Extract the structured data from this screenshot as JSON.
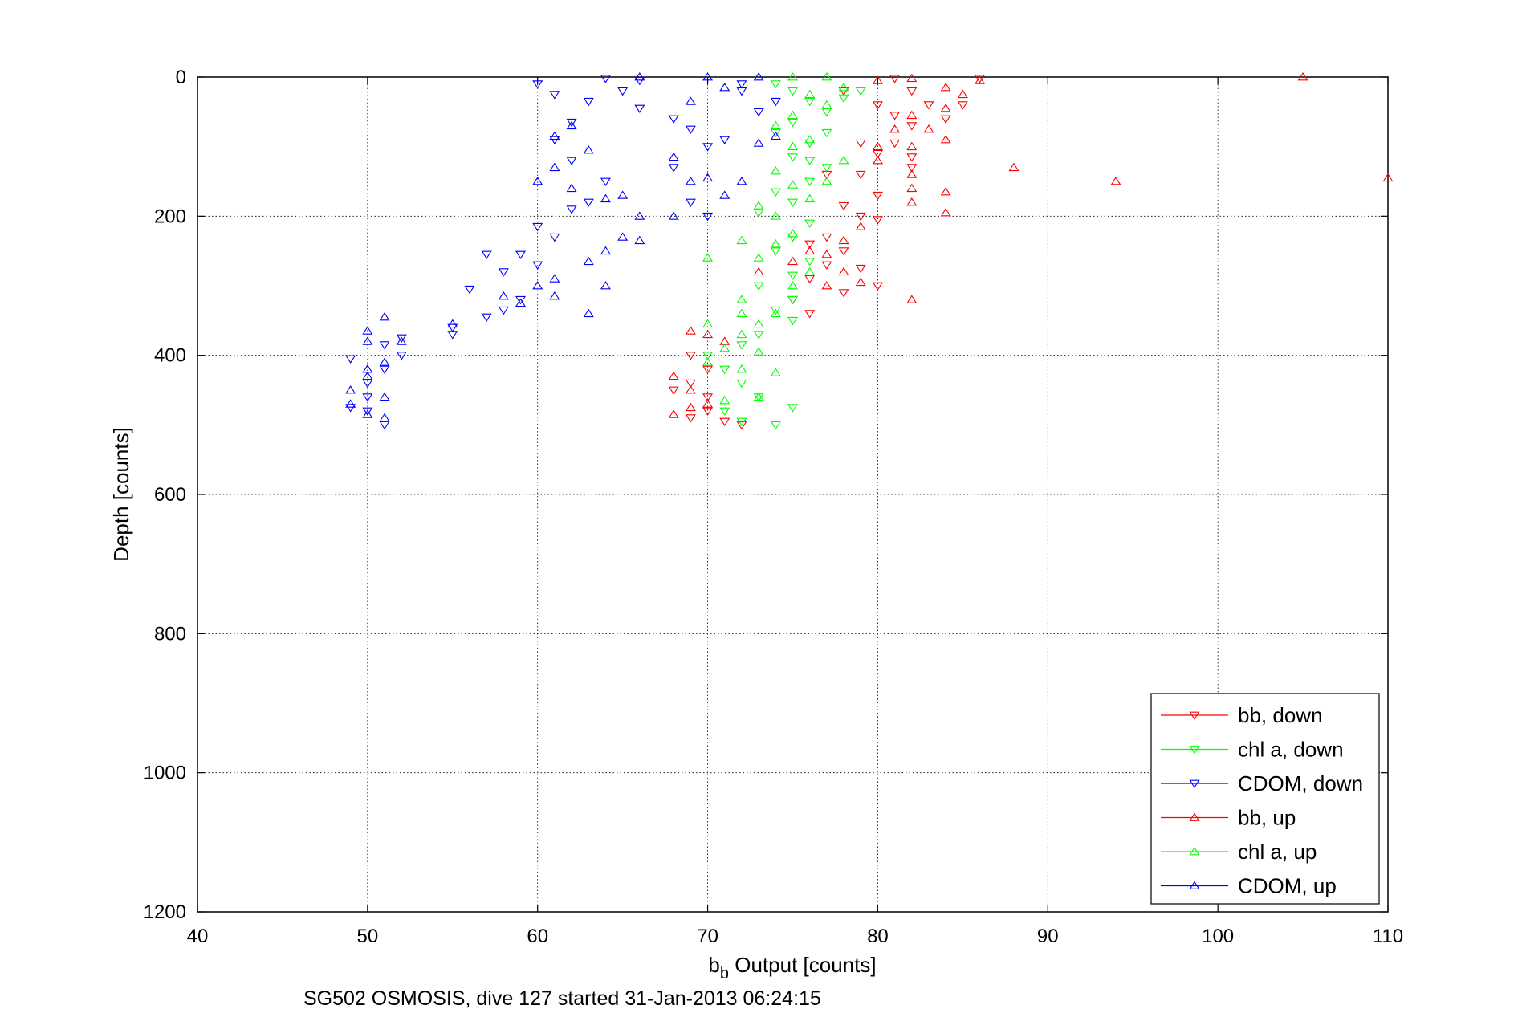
{
  "chart_data": {
    "type": "scatter",
    "xlabel_main": "b",
    "xlabel_sub": "b",
    "xlabel_rest": " Output [counts]",
    "ylabel": "Depth [counts]",
    "caption": "SG502 OSMOSIS, dive 127 started 31-Jan-2013 06:24:15",
    "xlim": [
      40,
      110
    ],
    "ylim": [
      0,
      1200
    ],
    "y_reversed": true,
    "grid": true,
    "legend_position": "bottom-right",
    "xticks": [
      "40",
      "50",
      "60",
      "70",
      "80",
      "90",
      "100",
      "110"
    ],
    "yticks": [
      "0",
      "200",
      "400",
      "600",
      "800",
      "1000",
      "1200"
    ],
    "series": [
      {
        "name": "bb, down",
        "color": "#ff0000",
        "marker": "triangle-down",
        "points": [
          [
            81,
            2
          ],
          [
            82,
            20
          ],
          [
            80,
            40
          ],
          [
            81,
            55
          ],
          [
            83,
            40
          ],
          [
            82,
            70
          ],
          [
            81,
            95
          ],
          [
            80,
            110
          ],
          [
            82,
            130
          ],
          [
            79,
            140
          ],
          [
            80,
            170
          ],
          [
            78,
            185
          ],
          [
            79,
            200
          ],
          [
            80,
            205
          ],
          [
            77,
            230
          ],
          [
            76,
            240
          ],
          [
            78,
            250
          ],
          [
            77,
            270
          ],
          [
            76,
            290
          ],
          [
            79,
            275
          ],
          [
            78,
            310
          ],
          [
            75,
            320
          ],
          [
            76,
            340
          ],
          [
            69,
            400
          ],
          [
            70,
            420
          ],
          [
            69,
            440
          ],
          [
            70,
            460
          ],
          [
            68,
            450
          ],
          [
            70,
            480
          ],
          [
            69,
            490
          ],
          [
            71,
            495
          ],
          [
            72,
            500
          ],
          [
            86,
            2
          ],
          [
            85,
            40
          ],
          [
            84,
            60
          ],
          [
            78,
            20
          ],
          [
            79,
            95
          ],
          [
            82,
            115
          ],
          [
            77,
            140
          ],
          [
            80,
            300
          ]
        ]
      },
      {
        "name": "chl a, down",
        "color": "#00ff00",
        "marker": "triangle-down",
        "points": [
          [
            74,
            10
          ],
          [
            75,
            20
          ],
          [
            76,
            35
          ],
          [
            77,
            50
          ],
          [
            75,
            65
          ],
          [
            74,
            80
          ],
          [
            76,
            95
          ],
          [
            75,
            115
          ],
          [
            77,
            130
          ],
          [
            76,
            150
          ],
          [
            74,
            165
          ],
          [
            75,
            180
          ],
          [
            73,
            195
          ],
          [
            76,
            210
          ],
          [
            75,
            230
          ],
          [
            74,
            250
          ],
          [
            76,
            265
          ],
          [
            75,
            285
          ],
          [
            73,
            300
          ],
          [
            75,
            320
          ],
          [
            74,
            335
          ],
          [
            75,
            350
          ],
          [
            73,
            370
          ],
          [
            72,
            385
          ],
          [
            70,
            400
          ],
          [
            71,
            420
          ],
          [
            72,
            440
          ],
          [
            73,
            460
          ],
          [
            71,
            480
          ],
          [
            72,
            495
          ],
          [
            75,
            475
          ],
          [
            74,
            500
          ],
          [
            78,
            30
          ],
          [
            79,
            20
          ],
          [
            77,
            80
          ],
          [
            76,
            120
          ]
        ]
      },
      {
        "name": "CDOM, down",
        "color": "#0000ff",
        "marker": "triangle-down",
        "points": [
          [
            60,
            10
          ],
          [
            61,
            25
          ],
          [
            63,
            35
          ],
          [
            65,
            20
          ],
          [
            66,
            5
          ],
          [
            64,
            2
          ],
          [
            62,
            65
          ],
          [
            61,
            90
          ],
          [
            62,
            120
          ],
          [
            64,
            150
          ],
          [
            63,
            180
          ],
          [
            62,
            190
          ],
          [
            60,
            215
          ],
          [
            61,
            230
          ],
          [
            59,
            255
          ],
          [
            60,
            270
          ],
          [
            58,
            280
          ],
          [
            57,
            255
          ],
          [
            56,
            305
          ],
          [
            59,
            320
          ],
          [
            58,
            335
          ],
          [
            57,
            345
          ],
          [
            55,
            360
          ],
          [
            55,
            370
          ],
          [
            52,
            375
          ],
          [
            52,
            400
          ],
          [
            51,
            385
          ],
          [
            51,
            420
          ],
          [
            50,
            440
          ],
          [
            50,
            460
          ],
          [
            49,
            475
          ],
          [
            49,
            405
          ],
          [
            50,
            480
          ],
          [
            51,
            500
          ],
          [
            66,
            45
          ],
          [
            68,
            60
          ],
          [
            69,
            75
          ],
          [
            70,
            100
          ],
          [
            68,
            130
          ],
          [
            69,
            180
          ],
          [
            70,
            200
          ],
          [
            72,
            20
          ],
          [
            73,
            50
          ],
          [
            71,
            90
          ],
          [
            74,
            35
          ],
          [
            72,
            10
          ]
        ]
      },
      {
        "name": "bb, up",
        "color": "#ff0000",
        "marker": "triangle-up",
        "points": [
          [
            82,
            2
          ],
          [
            80,
            5
          ],
          [
            84,
            15
          ],
          [
            85,
            25
          ],
          [
            84,
            45
          ],
          [
            82,
            55
          ],
          [
            83,
            75
          ],
          [
            82,
            100
          ],
          [
            84,
            90
          ],
          [
            80,
            120
          ],
          [
            82,
            140
          ],
          [
            84,
            165
          ],
          [
            82,
            160
          ],
          [
            82,
            180
          ],
          [
            84,
            195
          ],
          [
            79,
            215
          ],
          [
            78,
            235
          ],
          [
            77,
            255
          ],
          [
            78,
            280
          ],
          [
            77,
            300
          ],
          [
            79,
            295
          ],
          [
            82,
            320
          ],
          [
            76,
            250
          ],
          [
            75,
            265
          ],
          [
            73,
            280
          ],
          [
            69,
            365
          ],
          [
            70,
            370
          ],
          [
            71,
            380
          ],
          [
            68,
            430
          ],
          [
            69,
            450
          ],
          [
            70,
            470
          ],
          [
            68,
            485
          ],
          [
            69,
            475
          ],
          [
            88,
            130
          ],
          [
            94,
            150
          ],
          [
            105,
            0
          ],
          [
            110,
            145
          ],
          [
            86,
            5
          ],
          [
            81,
            75
          ],
          [
            80,
            100
          ]
        ]
      },
      {
        "name": "chl a, up",
        "color": "#00ff00",
        "marker": "triangle-up",
        "points": [
          [
            75,
            0
          ],
          [
            77,
            0
          ],
          [
            78,
            15
          ],
          [
            76,
            25
          ],
          [
            77,
            40
          ],
          [
            75,
            55
          ],
          [
            74,
            70
          ],
          [
            76,
            90
          ],
          [
            75,
            100
          ],
          [
            78,
            120
          ],
          [
            77,
            150
          ],
          [
            74,
            135
          ],
          [
            76,
            175
          ],
          [
            73,
            185
          ],
          [
            74,
            200
          ],
          [
            75,
            225
          ],
          [
            72,
            235
          ],
          [
            74,
            240
          ],
          [
            73,
            260
          ],
          [
            76,
            280
          ],
          [
            75,
            300
          ],
          [
            72,
            320
          ],
          [
            74,
            340
          ],
          [
            73,
            355
          ],
          [
            70,
            355
          ],
          [
            72,
            370
          ],
          [
            71,
            390
          ],
          [
            70,
            410
          ],
          [
            72,
            420
          ],
          [
            74,
            425
          ],
          [
            73,
            460
          ],
          [
            71,
            465
          ],
          [
            70,
            260
          ],
          [
            72,
            340
          ],
          [
            73,
            395
          ],
          [
            75,
            155
          ]
        ]
      },
      {
        "name": "CDOM, up",
        "color": "#0000ff",
        "marker": "triangle-up",
        "points": [
          [
            66,
            0
          ],
          [
            70,
            0
          ],
          [
            73,
            0
          ],
          [
            62,
            70
          ],
          [
            61,
            85
          ],
          [
            63,
            105
          ],
          [
            61,
            130
          ],
          [
            60,
            150
          ],
          [
            62,
            160
          ],
          [
            65,
            170
          ],
          [
            64,
            175
          ],
          [
            66,
            200
          ],
          [
            65,
            230
          ],
          [
            64,
            250
          ],
          [
            66,
            235
          ],
          [
            63,
            265
          ],
          [
            64,
            300
          ],
          [
            63,
            340
          ],
          [
            61,
            290
          ],
          [
            61,
            315
          ],
          [
            60,
            300
          ],
          [
            59,
            325
          ],
          [
            58,
            315
          ],
          [
            55,
            355
          ],
          [
            52,
            380
          ],
          [
            51,
            345
          ],
          [
            51,
            410
          ],
          [
            50,
            365
          ],
          [
            50,
            380
          ],
          [
            50,
            420
          ],
          [
            50,
            430
          ],
          [
            49,
            450
          ],
          [
            49,
            470
          ],
          [
            51,
            460
          ],
          [
            51,
            490
          ],
          [
            50,
            485
          ],
          [
            68,
            115
          ],
          [
            69,
            150
          ],
          [
            70,
            145
          ],
          [
            71,
            170
          ],
          [
            73,
            95
          ],
          [
            74,
            85
          ],
          [
            72,
            150
          ],
          [
            68,
            200
          ],
          [
            69,
            35
          ],
          [
            71,
            15
          ]
        ]
      }
    ]
  }
}
